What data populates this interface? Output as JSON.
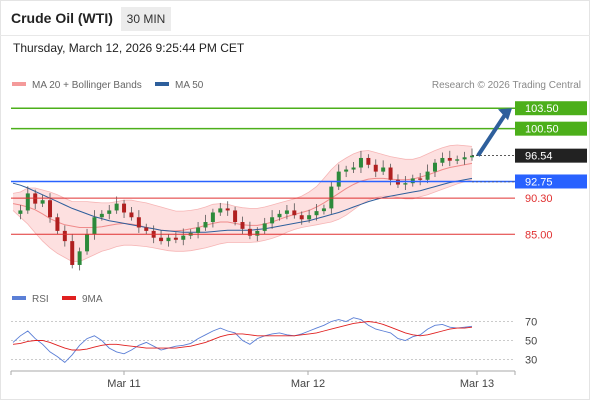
{
  "header": {
    "title": "Crude Oil (WTI)",
    "timeframe": "30 MIN",
    "timestamp": "Thursday, March 12, 2026 9:25:44 PM CET"
  },
  "legend": {
    "bollinger": {
      "label": "MA 20 + Bollinger Bands",
      "color": "#f49a9a"
    },
    "ma50": {
      "label": "MA 50",
      "color": "#2e5f9c"
    },
    "rsi": {
      "label": "RSI",
      "color": "#5b7fd6"
    },
    "ma9": {
      "label": "9MA",
      "color": "#e02020"
    }
  },
  "credit": "Research © 2026 Trading Central",
  "chart_data": [
    {
      "type": "candlestick",
      "title": "Crude Oil (WTI)",
      "x_ticks": [
        "Mar 11",
        "Mar 12",
        "Mar 13"
      ],
      "ylim": [
        78,
        105
      ],
      "current_price": {
        "value": 96.54,
        "label": "96.54"
      },
      "levels": [
        {
          "label": "103.50",
          "value": 103.5,
          "kind": "resistance",
          "color": "#4caf1a"
        },
        {
          "label": "100.50",
          "value": 100.5,
          "kind": "resistance",
          "color": "#4caf1a"
        },
        {
          "label": "92.75",
          "value": 92.75,
          "kind": "pivot",
          "color": "#2962ff"
        },
        {
          "label": "90.30",
          "value": 90.3,
          "kind": "support",
          "color": "#e03030"
        },
        {
          "label": "85.00",
          "value": 85.0,
          "kind": "support",
          "color": "#e03030"
        }
      ],
      "arrow": {
        "from": 96.54,
        "to": 103.5,
        "color": "#2e5f9c"
      },
      "close_path": [
        88.0,
        88.5,
        91.0,
        89.5,
        90.0,
        87.5,
        85.5,
        84.0,
        80.5,
        82.5,
        85.0,
        87.5,
        88.0,
        88.5,
        89.5,
        88.2,
        87.5,
        86.0,
        85.5,
        84.5,
        84.0,
        84.5,
        84.2,
        84.8,
        85.2,
        86.0,
        86.8,
        88.2,
        88.8,
        88.5,
        86.8,
        85.8,
        84.8,
        85.5,
        86.6,
        87.5,
        88.0,
        88.5,
        87.8,
        87.2,
        87.8,
        88.4,
        88.8,
        92.0,
        94.2,
        94.5,
        94.8,
        96.2,
        95.2,
        94.2,
        94.8,
        93.0,
        92.3,
        92.5,
        93.2,
        93.0,
        94.2,
        95.5,
        96.2,
        95.8,
        96.0,
        96.3,
        96.54
      ],
      "series": [
        {
          "name": "MA 20",
          "values": [
            89.5,
            89.3,
            89.0,
            88.6,
            88.0,
            87.3,
            86.8,
            86.4,
            86.2,
            86.0,
            86.0,
            86.0,
            86.1,
            86.3,
            86.5,
            86.6,
            86.5,
            86.3,
            86.0,
            85.8,
            85.6,
            85.5,
            85.5,
            85.6,
            85.8,
            86.0,
            86.3,
            86.6,
            86.8,
            86.8,
            86.6,
            86.4,
            86.3,
            86.3,
            86.5,
            86.8,
            87.2,
            87.6,
            87.9,
            88.2,
            88.5,
            89.0,
            89.6,
            90.3,
            91.0,
            91.7,
            92.3,
            92.8,
            93.1,
            93.2,
            93.2,
            93.1,
            93.0,
            93.0,
            93.1,
            93.4,
            93.7,
            94.1,
            94.5,
            94.8,
            95.0,
            95.2,
            95.4
          ]
        },
        {
          "name": "Bollinger Upper",
          "values": [
            91.0,
            91.2,
            91.8,
            91.8,
            91.5,
            91.2,
            90.8,
            90.3,
            89.8,
            89.8,
            89.8,
            89.7,
            89.6,
            89.6,
            89.8,
            90.0,
            90.0,
            89.8,
            89.6,
            89.3,
            89.0,
            88.7,
            88.4,
            88.4,
            88.5,
            88.7,
            89.0,
            89.4,
            89.5,
            89.4,
            89.1,
            88.9,
            88.8,
            88.8,
            89.0,
            89.3,
            89.6,
            89.9,
            90.2,
            90.6,
            91.2,
            92.0,
            93.2,
            94.5,
            95.5,
            96.2,
            96.8,
            97.2,
            97.3,
            97.0,
            96.7,
            96.4,
            96.2,
            96.0,
            96.0,
            96.3,
            96.8,
            97.3,
            97.7,
            98.0,
            98.1,
            98.0,
            97.9
          ]
        },
        {
          "name": "Bollinger Lower",
          "values": [
            88.5,
            87.5,
            86.5,
            85.2,
            84.0,
            83.0,
            82.2,
            81.6,
            81.0,
            81.0,
            81.5,
            82.0,
            82.5,
            82.8,
            83.2,
            83.4,
            83.4,
            83.3,
            83.2,
            83.0,
            82.8,
            82.6,
            82.5,
            82.5,
            82.6,
            82.8,
            83.0,
            83.3,
            83.6,
            83.8,
            83.8,
            83.8,
            83.8,
            83.9,
            84.1,
            84.4,
            84.8,
            85.3,
            85.7,
            86.0,
            86.2,
            86.4,
            86.6,
            86.8,
            87.2,
            87.8,
            88.6,
            89.4,
            90.0,
            90.4,
            90.6,
            90.6,
            90.4,
            90.2,
            90.2,
            90.5,
            90.8,
            91.2,
            91.6,
            92.0,
            92.4,
            92.7,
            93.0
          ]
        },
        {
          "name": "MA 50",
          "values": [
            92.5,
            92.2,
            91.8,
            91.3,
            90.8,
            90.3,
            89.8,
            89.3,
            88.8,
            88.4,
            88.0,
            87.6,
            87.3,
            87.0,
            86.8,
            86.6,
            86.4,
            86.2,
            86.0,
            85.8,
            85.6,
            85.5,
            85.4,
            85.3,
            85.3,
            85.3,
            85.3,
            85.4,
            85.5,
            85.6,
            85.6,
            85.6,
            85.6,
            85.7,
            85.8,
            86.0,
            86.2,
            86.4,
            86.6,
            86.8,
            87.0,
            87.3,
            87.6,
            87.9,
            88.2,
            88.6,
            89.0,
            89.4,
            89.8,
            90.1,
            90.4,
            90.6,
            90.8,
            91.0,
            91.2,
            91.4,
            91.7,
            92.0,
            92.3,
            92.6,
            92.8,
            93.0,
            93.2
          ]
        }
      ]
    },
    {
      "type": "line",
      "title": "",
      "ylim": [
        20,
        80
      ],
      "y_ticks": [
        30,
        50,
        70
      ],
      "x_ticks": [
        "Mar 11",
        "Mar 12",
        "Mar 13"
      ],
      "series": [
        {
          "name": "RSI",
          "values": [
            48,
            55,
            60,
            52,
            46,
            38,
            33,
            27,
            35,
            45,
            52,
            55,
            50,
            42,
            38,
            36,
            40,
            45,
            48,
            44,
            40,
            42,
            44,
            45,
            47,
            52,
            56,
            60,
            63,
            60,
            58,
            50,
            46,
            52,
            55,
            57,
            58,
            56,
            55,
            57,
            60,
            63,
            66,
            70,
            72,
            70,
            74,
            72,
            66,
            62,
            60,
            58,
            52,
            50,
            54,
            56,
            62,
            66,
            67,
            64,
            63,
            64,
            65
          ]
        },
        {
          "name": "9MA",
          "values": [
            46,
            47,
            49,
            50,
            50,
            48,
            45,
            42,
            40,
            40,
            41,
            43,
            45,
            46,
            46,
            45,
            44,
            43,
            42,
            42,
            42,
            42,
            42,
            43,
            44,
            46,
            48,
            51,
            54,
            56,
            57,
            57,
            56,
            55,
            55,
            55,
            55,
            55,
            55,
            56,
            57,
            58,
            60,
            62,
            64,
            66,
            68,
            69,
            70,
            69,
            67,
            64,
            61,
            58,
            56,
            55,
            56,
            58,
            60,
            62,
            63,
            63,
            64
          ]
        }
      ]
    }
  ]
}
